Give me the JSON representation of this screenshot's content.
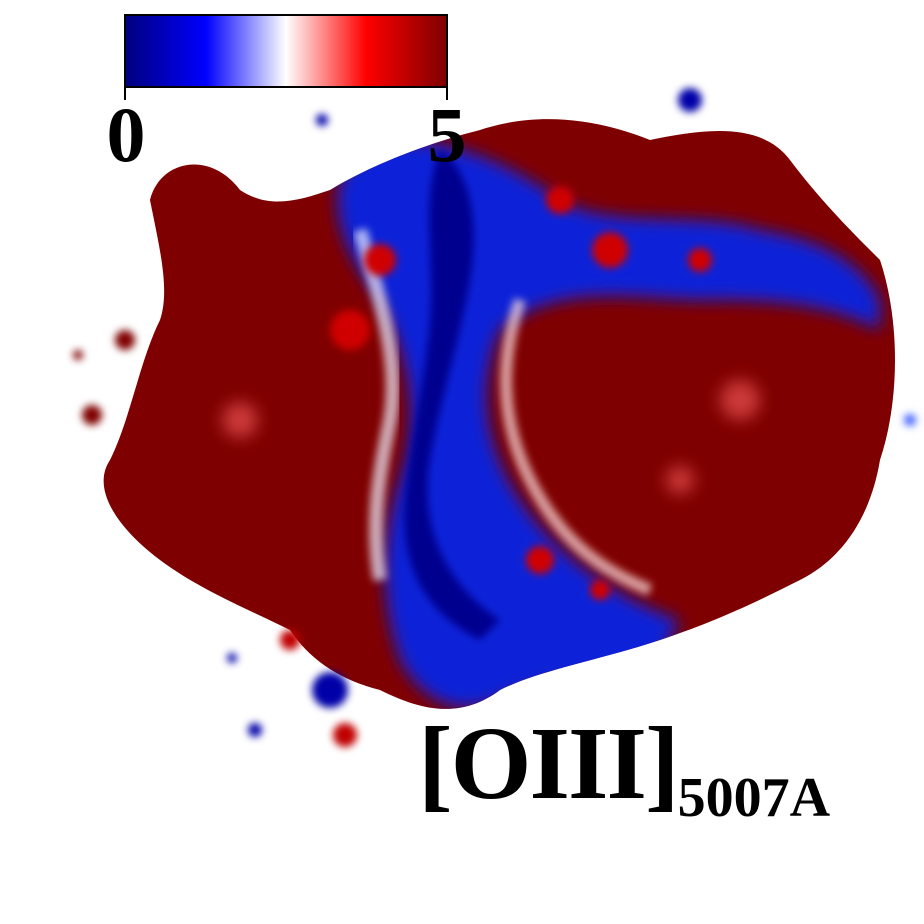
{
  "colorbar": {
    "min_label": "0",
    "max_label": "5",
    "colors": [
      "#00007f",
      "#0000ff",
      "#ffffff",
      "#ff0000",
      "#7f0000"
    ]
  },
  "map": {
    "high_color": "#7f0000",
    "mid_high_color": "#d90000",
    "low_color": "#0000a8",
    "mid_low_color": "#3050ff",
    "zero_color": "#ffffff"
  },
  "label": {
    "main": "[OIII]",
    "sub": "5007A"
  }
}
